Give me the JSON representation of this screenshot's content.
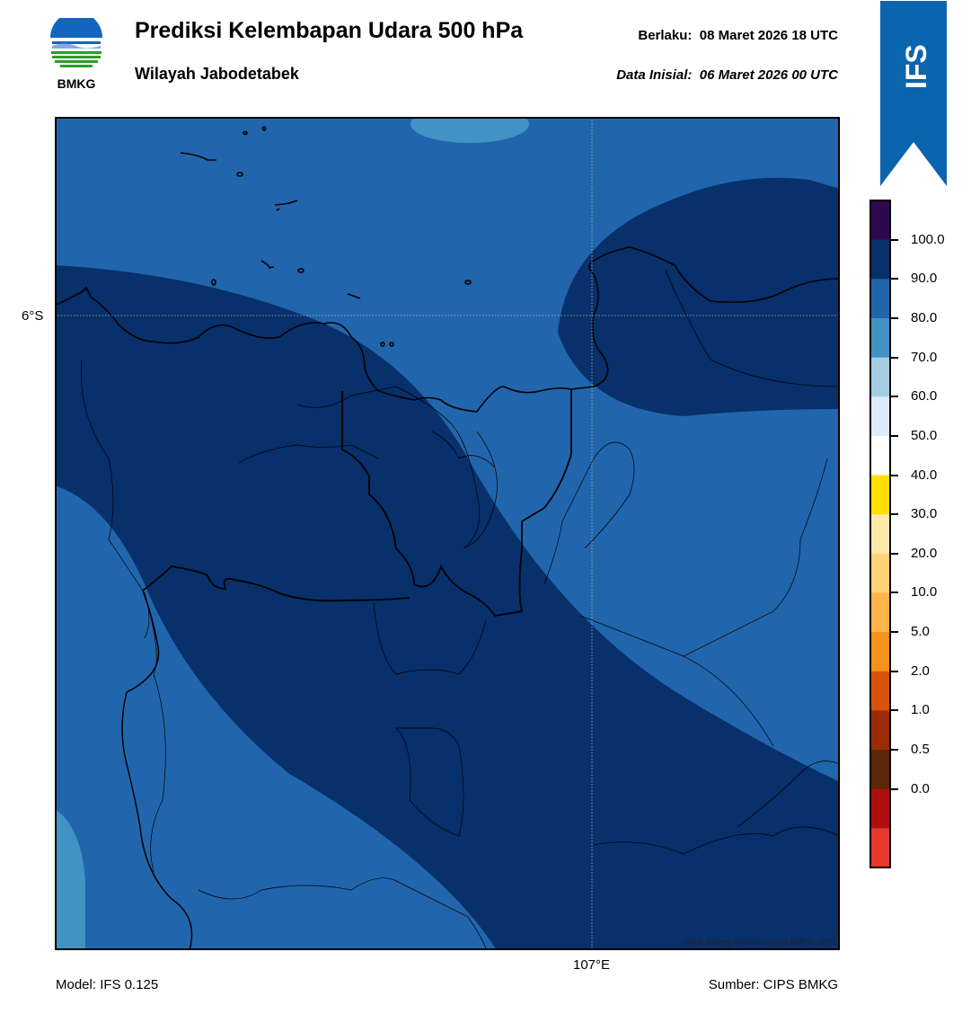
{
  "header": {
    "logo_text": "BMKG",
    "title": "Prediksi Kelembapan Udara 500 hPa",
    "subtitle": "Wilayah Jabodetabek",
    "valid_label": "Berlaku:",
    "valid_time": "08 Maret 2026 18 UTC",
    "init_label": "Data Inisial:",
    "init_time": "06 Maret 2026 00 UTC",
    "badge": "IFS"
  },
  "map": {
    "lat_label": "6°S",
    "lon_label": "107°E",
    "credit": "©Sub Bidang Prediksi Cuaca BMKG, 2023",
    "field_colors": {
      "70-80": "#4292c6",
      "80-90": "#2166ac",
      "90-100": "#08306b"
    },
    "coastline_color": "#000000"
  },
  "colorbar": {
    "ticks": [
      "100.0",
      "90.0",
      "80.0",
      "70.0",
      "60.0",
      "50.0",
      "40.0",
      "30.0",
      "20.0",
      "10.0",
      "5.0",
      "2.0",
      "1.0",
      "0.5",
      "0.0"
    ],
    "colors": [
      "#2d0a4e",
      "#08306b",
      "#2166ac",
      "#4292c6",
      "#a6cee3",
      "#deebf7",
      "#ffffff",
      "#ffe000",
      "#ffe9a8",
      "#ffd27a",
      "#ffb44a",
      "#f8921e",
      "#d9530b",
      "#9a2d05",
      "#5c2709",
      "#b00f0f",
      "#e8392b"
    ]
  },
  "footer": {
    "model": "Model: IFS 0.125",
    "source": "Sumber: CIPS BMKG"
  }
}
